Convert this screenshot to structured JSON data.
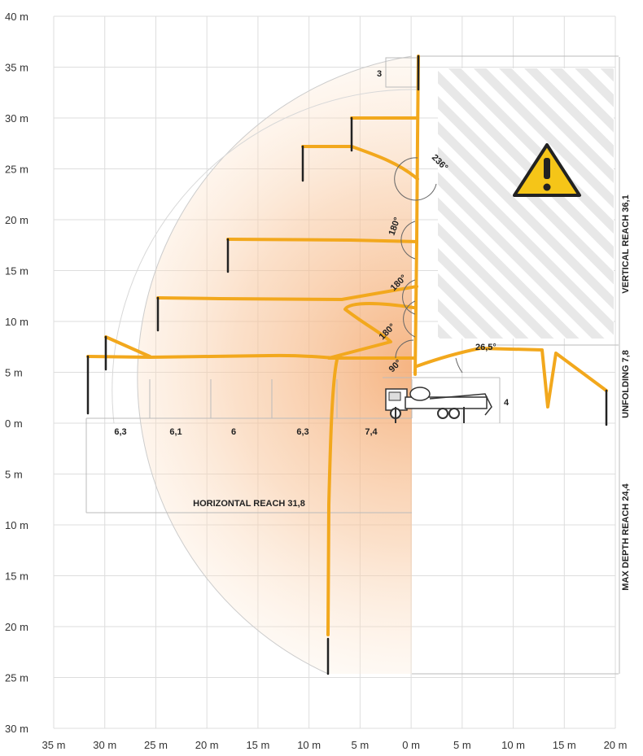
{
  "diagram": {
    "axis": {
      "y_labels": [
        "40 m",
        "35 m",
        "30 m",
        "25 m",
        "20 m",
        "15 m",
        "10 m",
        "5 m",
        "0 m",
        "5 m",
        "10 m",
        "15 m",
        "20 m",
        "25 m",
        "30 m"
      ],
      "x_labels": [
        "35 m",
        "30 m",
        "25 m",
        "20 m",
        "15 m",
        "10 m",
        "5 m",
        "0 m",
        "5 m",
        "10 m",
        "15 m",
        "20 m"
      ]
    },
    "boom_sections": [
      "6,3",
      "6,1",
      "6",
      "6,3",
      "7,4"
    ],
    "section_tip": "3",
    "outrigger_height": "4",
    "angles": [
      "236°",
      "180°",
      "180°",
      "180°",
      "90°",
      "26,5°"
    ],
    "dimensions": {
      "horizontal_reach": "HORIZONTAL REACH 31,8",
      "vertical_reach": "VERTICAL REACH 36,1",
      "unfolding": "UNFOLDING 7,8",
      "max_depth": "MAX DEPTH REACH 24,4"
    },
    "icons": [
      "warning-icon",
      "truck-icon"
    ],
    "colors": {
      "boom": "#f2a81d",
      "reach": "#f5b07a",
      "hatch": "#e6e6e6",
      "warning": "#f5c518"
    }
  }
}
